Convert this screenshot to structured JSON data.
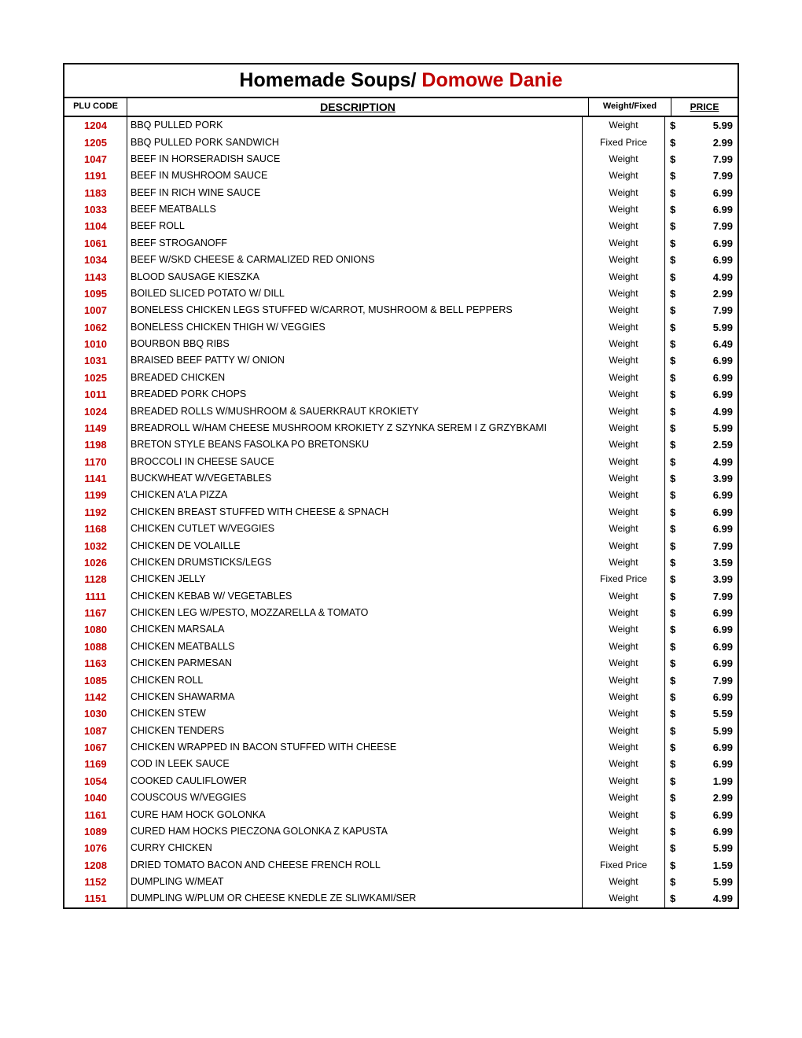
{
  "title_black": "Homemade Soups/ ",
  "title_red": "Domowe Danie",
  "headers": {
    "plu": "PLU CODE",
    "desc": "DESCRIPTION",
    "wf": "Weight/Fixed",
    "price": "PRICE"
  },
  "currency": "$",
  "rows": [
    {
      "plu": "1204",
      "desc": "BBQ PULLED PORK",
      "wf": "Weight",
      "price": "5.99"
    },
    {
      "plu": "1205",
      "desc": "BBQ PULLED PORK SANDWICH",
      "wf": "Fixed Price",
      "price": "2.99"
    },
    {
      "plu": "1047",
      "desc": "BEEF IN HORSERADISH SAUCE",
      "wf": "Weight",
      "price": "7.99"
    },
    {
      "plu": "1191",
      "desc": "BEEF IN MUSHROOM SAUCE",
      "wf": "Weight",
      "price": "7.99"
    },
    {
      "plu": "1183",
      "desc": "BEEF IN RICH WINE SAUCE",
      "wf": "Weight",
      "price": "6.99"
    },
    {
      "plu": "1033",
      "desc": "BEEF MEATBALLS",
      "wf": "Weight",
      "price": "6.99"
    },
    {
      "plu": "1104",
      "desc": "BEEF ROLL",
      "wf": "Weight",
      "price": "7.99"
    },
    {
      "plu": "1061",
      "desc": "BEEF STROGANOFF",
      "wf": "Weight",
      "price": "6.99"
    },
    {
      "plu": "1034",
      "desc": "BEEF W/SKD CHEESE &  CARMALIZED RED ONIONS",
      "wf": "Weight",
      "price": "6.99"
    },
    {
      "plu": "1143",
      "desc": "BLOOD SAUSAGE KIESZKA",
      "wf": "Weight",
      "price": "4.99"
    },
    {
      "plu": "1095",
      "desc": "BOILED SLICED POTATO W/ DILL",
      "wf": "Weight",
      "price": "2.99"
    },
    {
      "plu": "1007",
      "desc": "BONELESS CHICKEN LEGS  STUFFED W/CARROT,  MUSHROOM & BELL PEPPERS",
      "wf": "Weight",
      "price": "7.99"
    },
    {
      "plu": "1062",
      "desc": "BONELESS CHICKEN THIGH W/ VEGGIES",
      "wf": "Weight",
      "price": "5.99"
    },
    {
      "plu": "1010",
      "desc": "BOURBON BBQ RIBS",
      "wf": "Weight",
      "price": "6.49"
    },
    {
      "plu": "1031",
      "desc": "BRAISED BEEF PATTY W/ ONION",
      "wf": "Weight",
      "price": "6.99"
    },
    {
      "plu": "1025",
      "desc": "BREADED CHICKEN",
      "wf": "Weight",
      "price": "6.99"
    },
    {
      "plu": "1011",
      "desc": "BREADED PORK CHOPS",
      "wf": "Weight",
      "price": "6.99"
    },
    {
      "plu": "1024",
      "desc": "BREADED ROLLS W/MUSHROOM  & SAUERKRAUT KROKIETY",
      "wf": "Weight",
      "price": "4.99"
    },
    {
      "plu": "1149",
      "desc": "BREADROLL W/HAM CHEESE  MUSHROOM  KROKIETY Z SZYNKA SEREM  I Z GRZYBKAMI",
      "wf": "Weight",
      "price": "5.99"
    },
    {
      "plu": "1198",
      "desc": "BRETON STYLE BEANS  FASOLKA PO BRETONSKU",
      "wf": "Weight",
      "price": "2.59"
    },
    {
      "plu": "1170",
      "desc": "BROCCOLI IN CHEESE SAUCE",
      "wf": "Weight",
      "price": "4.99"
    },
    {
      "plu": "1141",
      "desc": "BUCKWHEAT W/VEGETABLES",
      "wf": "Weight",
      "price": "3.99"
    },
    {
      "plu": "1199",
      "desc": "CHICKEN A'LA PIZZA",
      "wf": "Weight",
      "price": "6.99"
    },
    {
      "plu": "1192",
      "desc": "CHICKEN BREAST STUFFED  WITH CHEESE & SPNACH",
      "wf": "Weight",
      "price": "6.99"
    },
    {
      "plu": "1168",
      "desc": "CHICKEN CUTLET W/VEGGIES",
      "wf": "Weight",
      "price": "6.99"
    },
    {
      "plu": "1032",
      "desc": "CHICKEN DE VOLAILLE",
      "wf": "Weight",
      "price": "7.99"
    },
    {
      "plu": "1026",
      "desc": "CHICKEN DRUMSTICKS/LEGS",
      "wf": "Weight",
      "price": "3.59"
    },
    {
      "plu": "1128",
      "desc": "CHICKEN JELLY",
      "wf": "Fixed Price",
      "price": "3.99"
    },
    {
      "plu": "1111",
      "desc": "CHICKEN KEBAB W/ VEGETABLES",
      "wf": "Weight",
      "price": "7.99"
    },
    {
      "plu": "1167",
      "desc": "CHICKEN LEG W/PESTO,  MOZZARELLA & TOMATO",
      "wf": "Weight",
      "price": "6.99"
    },
    {
      "plu": "1080",
      "desc": "CHICKEN MARSALA",
      "wf": "Weight",
      "price": "6.99"
    },
    {
      "plu": "1088",
      "desc": "CHICKEN MEATBALLS",
      "wf": "Weight",
      "price": "6.99"
    },
    {
      "plu": "1163",
      "desc": "CHICKEN PARMESAN",
      "wf": "Weight",
      "price": "6.99"
    },
    {
      "plu": "1085",
      "desc": "CHICKEN ROLL",
      "wf": "Weight",
      "price": "7.99"
    },
    {
      "plu": "1142",
      "desc": "CHICKEN SHAWARMA",
      "wf": "Weight",
      "price": "6.99"
    },
    {
      "plu": "1030",
      "desc": "CHICKEN STEW",
      "wf": "Weight",
      "price": "5.59"
    },
    {
      "plu": "1087",
      "desc": "CHICKEN TENDERS",
      "wf": "Weight",
      "price": "5.99"
    },
    {
      "plu": "1067",
      "desc": "CHICKEN WRAPPED IN BACON  STUFFED WITH CHEESE",
      "wf": "Weight",
      "price": "6.99"
    },
    {
      "plu": "1169",
      "desc": "COD IN LEEK SAUCE",
      "wf": "Weight",
      "price": "6.99"
    },
    {
      "plu": "1054",
      "desc": "COOKED CAULIFLOWER",
      "wf": "Weight",
      "price": "1.99"
    },
    {
      "plu": "1040",
      "desc": "COUSCOUS W/VEGGIES",
      "wf": "Weight",
      "price": "2.99"
    },
    {
      "plu": "1161",
      "desc": "CURE HAM HOCK GOLONKA",
      "wf": "Weight",
      "price": "6.99"
    },
    {
      "plu": "1089",
      "desc": "CURED HAM HOCKS PIECZONA GOLONKA Z  KAPUSTA",
      "wf": "Weight",
      "price": "6.99"
    },
    {
      "plu": "1076",
      "desc": "CURRY CHICKEN",
      "wf": "Weight",
      "price": "5.99"
    },
    {
      "plu": "1208",
      "desc": "DRIED TOMATO BACON AND  CHEESE FRENCH ROLL",
      "wf": "Fixed Price",
      "price": "1.59"
    },
    {
      "plu": "1152",
      "desc": "DUMPLING W/MEAT",
      "wf": "Weight",
      "price": "5.99"
    },
    {
      "plu": "1151",
      "desc": "DUMPLING W/PLUM OR CHEESE KNEDLE ZE SLIWKAMI/SER",
      "wf": "Weight",
      "price": "4.99"
    }
  ]
}
